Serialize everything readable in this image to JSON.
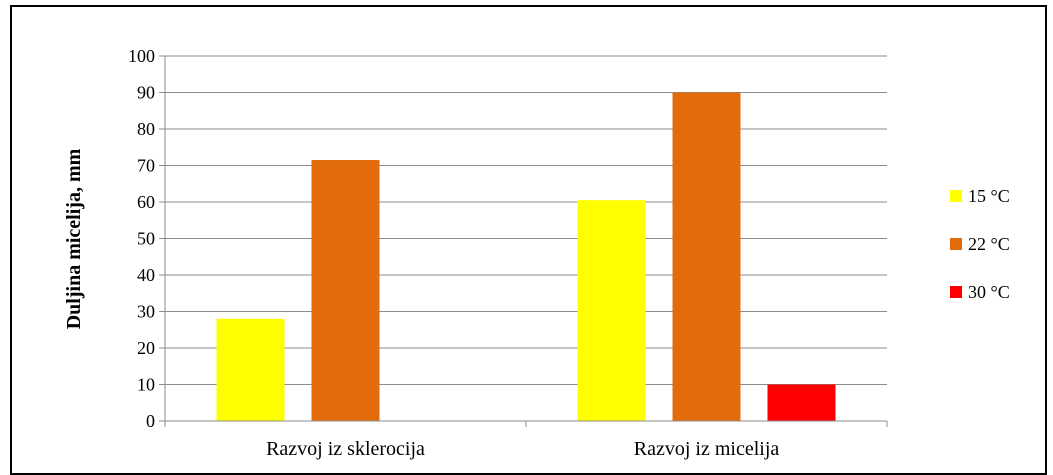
{
  "chart_data": {
    "type": "bar",
    "title": "",
    "xlabel": "",
    "ylabel": "Duljina micelija, mm",
    "ylim": [
      0,
      100
    ],
    "yticks": [
      0,
      10,
      20,
      30,
      40,
      50,
      60,
      70,
      80,
      90,
      100
    ],
    "categories": [
      "Razvoj iz sklerocija",
      "Razvoj iz micelija"
    ],
    "series": [
      {
        "name": "15 °C",
        "color": "#ffff00",
        "values": [
          28,
          60.5
        ]
      },
      {
        "name": "22 °C",
        "color": "#e36c0a",
        "values": [
          71.5,
          90
        ]
      },
      {
        "name": "30 °C",
        "color": "#ff0000",
        "values": [
          0,
          10
        ]
      }
    ],
    "grid": true,
    "legend": "right"
  }
}
